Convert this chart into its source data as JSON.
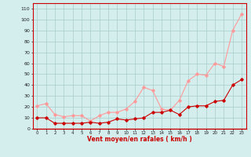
{
  "x": [
    0,
    1,
    2,
    3,
    4,
    5,
    6,
    7,
    8,
    9,
    10,
    11,
    12,
    13,
    14,
    15,
    16,
    17,
    18,
    19,
    20,
    21,
    22,
    23
  ],
  "wind_avg": [
    10,
    10,
    5,
    5,
    5,
    5,
    6,
    5,
    6,
    9,
    8,
    9,
    10,
    15,
    15,
    17,
    13,
    20,
    21,
    21,
    25,
    26,
    40,
    45
  ],
  "wind_gust": [
    21,
    23,
    13,
    11,
    12,
    12,
    7,
    12,
    15,
    15,
    18,
    25,
    38,
    35,
    18,
    17,
    26,
    44,
    50,
    49,
    60,
    57,
    90,
    105
  ],
  "bg_color": "#d4eeee",
  "grid_color": "#aacccc",
  "avg_color": "#cc0000",
  "gust_color": "#ff9999",
  "xlabel": "Vent moyen/en rafales ( km/h )",
  "xlabel_color": "#cc0000",
  "ylabel_ticks": [
    0,
    10,
    20,
    30,
    40,
    50,
    60,
    70,
    80,
    90,
    100,
    110
  ],
  "ylim": [
    0,
    115
  ],
  "xlim": [
    -0.5,
    23.5
  ],
  "marker": "D",
  "markersize": 1.8,
  "linewidth": 0.8
}
